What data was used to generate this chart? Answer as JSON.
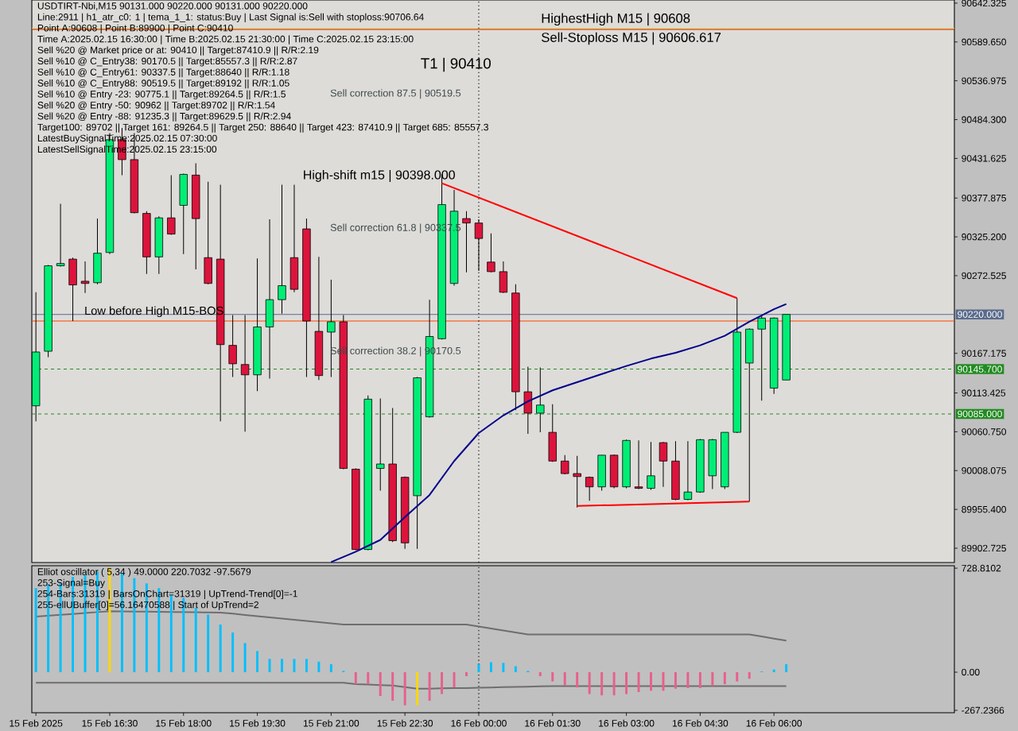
{
  "chart_data": [
    {
      "type": "candlestick",
      "title": "USDTIRT-Nbi,M15  90131.000 90220.000 90131.000 90220.000",
      "annotations": [
        "Line:2911 | h1_atr_c0: 1 | tema_1_1: status:Buy | Last Signal is:Sell with stoploss:90706.64",
        "Point A:90608 | Point B:89900 | Point C:90410",
        "Time A:2025.02.15 16:30:00 | Time B:2025.02.15 21:30:00 | Time C:2025.02.15 23:15:00",
        "Sell %20 @ Market price or at: 90410 || Target:87410.9 || R/R:2.19",
        "Sell %10 @ C_Entry38: 90170.5 || Target:85557.3 || R/R:2.87",
        "Sell %10 @ C_Entry61: 90337.5 || Target:88640 || R/R:1.18",
        "Sell %10 @ C_Entry88: 90519.5 || Target:89192 || R/R:1.05",
        "Sell %10 @ Entry -23: 90775.1 || Target:89264.5 || R/R:1.5",
        "Sell %20 @ Entry -50: 90962 || Target:89702 || R/R:1.54",
        "Sell %20 @ Entry -88: 91235.3 || Target:89629.5 || R/R:2.94",
        "Target100: 89702 || Target 161: 89264.5 || Target 250: 88640 || Target 423: 87410.9 || Target 685: 85557.3",
        "LatestBuySignalTime:2025.02.15 07:30:00",
        "LatestSellSignalTime:2025.02.15 23:15:00",
        "T1 | 90410",
        "Sell correction 87.5 | 90519.5",
        "Sell correction 61.8 | 90337.5",
        "Sell correction 38.2 | 90170.5",
        {
          "text": "High-shift m15 | 90398.000",
          "x": "2025-02-15T23:15",
          "y": 90398
        }
      ],
      "x": [
        "2025-02-15T15:00",
        "2025-02-15T15:15",
        "2025-02-15T15:30",
        "2025-02-15T15:45",
        "2025-02-15T16:00",
        "2025-02-15T16:15",
        "2025-02-15T16:30",
        "2025-02-15T16:45",
        "2025-02-15T17:00",
        "2025-02-15T17:15",
        "2025-02-15T17:30",
        "2025-02-15T17:45",
        "2025-02-15T18:00",
        "2025-02-15T18:15",
        "2025-02-15T18:30",
        "2025-02-15T18:45",
        "2025-02-15T19:00",
        "2025-02-15T19:15",
        "2025-02-15T19:30",
        "2025-02-15T19:45",
        "2025-02-15T20:00",
        "2025-02-15T20:15",
        "2025-02-15T20:30",
        "2025-02-15T20:45",
        "2025-02-15T21:00",
        "2025-02-15T21:15",
        "2025-02-15T21:30",
        "2025-02-15T21:45",
        "2025-02-15T22:00",
        "2025-02-15T22:15",
        "2025-02-15T22:30",
        "2025-02-15T22:45",
        "2025-02-15T23:00",
        "2025-02-15T23:15",
        "2025-02-15T23:30",
        "2025-02-15T23:45",
        "2025-02-16T00:00",
        "2025-02-16T00:15",
        "2025-02-16T00:30",
        "2025-02-16T00:45",
        "2025-02-16T01:00",
        "2025-02-16T01:15",
        "2025-02-16T01:30",
        "2025-02-16T01:45",
        "2025-02-16T02:00",
        "2025-02-16T02:15",
        "2025-02-16T02:30",
        "2025-02-16T02:45",
        "2025-02-16T03:00",
        "2025-02-16T03:15",
        "2025-02-16T03:30",
        "2025-02-16T03:45",
        "2025-02-16T04:00",
        "2025-02-16T04:15",
        "2025-02-16T04:30",
        "2025-02-16T04:45",
        "2025-02-16T05:00",
        "2025-02-16T05:15",
        "2025-02-16T05:30",
        "2025-02-16T05:45",
        "2025-02-16T06:00",
        "2025-02-16T06:15"
      ],
      "ohlc": [
        [
          90096,
          90250,
          90075,
          90169
        ],
        [
          90170,
          90287,
          90162,
          90286
        ],
        [
          90286,
          90370,
          90285,
          90289
        ],
        [
          90295,
          90297,
          90211,
          90260
        ],
        [
          90265,
          90292,
          90249,
          90262
        ],
        [
          90263,
          90350,
          90261,
          90303
        ],
        [
          90304,
          90466,
          90302,
          90457
        ],
        [
          90457,
          90473,
          90409,
          90430
        ],
        [
          90430,
          90466,
          90357,
          90358
        ],
        [
          90357,
          90360,
          90275,
          90298
        ],
        [
          90298,
          90353,
          90275,
          90351
        ],
        [
          90351,
          90409,
          90328,
          90329
        ],
        [
          90368,
          90411,
          90302,
          90410
        ],
        [
          90409,
          90425,
          90281,
          90350
        ],
        [
          90297,
          90400,
          90261,
          90262
        ],
        [
          90295,
          90396,
          90075,
          90179
        ],
        [
          90178,
          90219,
          90135,
          90153
        ],
        [
          90152,
          90219,
          90061,
          90138
        ],
        [
          90138,
          90296,
          90116,
          90203
        ],
        [
          90203,
          90349,
          90133,
          90240
        ],
        [
          90240,
          90396,
          90221,
          90259
        ],
        [
          90297,
          90396,
          90250,
          90254
        ],
        [
          90336,
          90350,
          90135,
          90211
        ],
        [
          90197,
          90298,
          90131,
          90137
        ],
        [
          90196,
          90267,
          90135,
          90210
        ],
        [
          90210,
          90219,
          90010,
          90011
        ],
        [
          90010,
          90011,
          89900,
          89901
        ],
        [
          89901,
          90110,
          89900,
          90105
        ],
        [
          90011,
          90106,
          89981,
          90017
        ],
        [
          90017,
          90093,
          89911,
          89913
        ],
        [
          89999,
          90000,
          89902,
          89910
        ],
        [
          89974,
          90135,
          89902,
          90134
        ],
        [
          90081,
          90240,
          90080,
          90190
        ],
        [
          90187,
          90410,
          90186,
          90369
        ],
        [
          90262,
          90389,
          90259,
          90360
        ],
        [
          90350,
          90360,
          90277,
          90344
        ],
        [
          90344,
          90349,
          90279,
          90323
        ],
        [
          90291,
          90330,
          90277,
          90278
        ],
        [
          90278,
          90292,
          90249,
          90250
        ],
        [
          90249,
          90261,
          90090,
          90115
        ],
        [
          90115,
          90149,
          90058,
          90086
        ],
        [
          90086,
          90148,
          90060,
          90097
        ],
        [
          90060,
          90098,
          90020,
          90021
        ],
        [
          90021,
          90029,
          90003,
          90004
        ],
        [
          90004,
          90028,
          89958,
          90000
        ],
        [
          89999,
          90000,
          89967,
          89986
        ],
        [
          89986,
          90029,
          89981,
          90029
        ],
        [
          90029,
          90030,
          89984,
          89986
        ],
        [
          89986,
          90050,
          89984,
          90049
        ],
        [
          89986,
          90049,
          89983,
          89984
        ],
        [
          89984,
          90047,
          89982,
          90001
        ],
        [
          90046,
          90047,
          89986,
          90021
        ],
        [
          90021,
          90048,
          89968,
          89969
        ],
        [
          89969,
          90048,
          89968,
          89979
        ],
        [
          89979,
          90051,
          89978,
          90050
        ],
        [
          90001,
          90051,
          89983,
          90050
        ],
        [
          89986,
          90060,
          89983,
          90060
        ],
        [
          90060,
          90242,
          90059,
          90196
        ],
        [
          90154,
          90201,
          89966,
          90200
        ],
        [
          90200,
          90219,
          90103,
          90215
        ],
        [
          90120,
          90216,
          90112,
          90215
        ],
        [
          90131,
          90220,
          90131,
          90220
        ]
      ],
      "colors": [
        "#00ee76",
        "#00ee76",
        "#00ee76",
        "#dc143c",
        "#dc143c",
        "#00ee76",
        "#00ee76",
        "#dc143c",
        "#dc143c",
        "#dc143c",
        "#00ee76",
        "#dc143c",
        "#00ee76",
        "#dc143c",
        "#dc143c",
        "#dc143c",
        "#dc143c",
        "#dc143c",
        "#00ee76",
        "#00ee76",
        "#00ee76",
        "#dc143c",
        "#dc143c",
        "#dc143c",
        "#00ee76",
        "#dc143c",
        "#dc143c",
        "#00ee76",
        "#00ee76",
        "#dc143c",
        "#dc143c",
        "#00ee76",
        "#00ee76",
        "#00ee76",
        "#00ee76",
        "#dc143c",
        "#dc143c",
        "#dc143c",
        "#dc143c",
        "#dc143c",
        "#dc143c",
        "#00ee76",
        "#dc143c",
        "#dc143c",
        "#dc143c",
        "#dc143c",
        "#00ee76",
        "#dc143c",
        "#00ee76",
        "#dc143c",
        "#00ee76",
        "#dc143c",
        "#dc143c",
        "#00ee76",
        "#00ee76",
        "#00ee76",
        "#00ee76",
        "#00ee76",
        "#00ee76",
        "#00ee76",
        "#00ee76",
        "#00ee76"
      ],
      "series": [
        {
          "type": "line",
          "color": "#00008b",
          "x": [
            "2025-02-15T21:00",
            "2025-02-15T21:30",
            "2025-02-15T22:00",
            "2025-02-15T22:30",
            "2025-02-15T23:00",
            "2025-02-15T23:30",
            "2025-02-16T00:00",
            "2025-02-16T00:30",
            "2025-02-16T01:00",
            "2025-02-16T01:30",
            "2025-02-16T02:00",
            "2025-02-16T02:30",
            "2025-02-16T03:00",
            "2025-02-16T03:30",
            "2025-02-16T04:00",
            "2025-02-16T04:30",
            "2025-02-16T05:00",
            "2025-02-16T05:30",
            "2025-02-16T06:00",
            "2025-02-16T06:15"
          ],
          "values": [
            89884,
            89898,
            89914,
            89945,
            89975,
            90021,
            90059,
            90083,
            90102,
            90117,
            90128,
            90139,
            90150,
            90160,
            90168,
            90178,
            90191,
            90210,
            90227,
            90234
          ]
        },
        {
          "type": "line",
          "color": "#ff0000",
          "x": [
            "2025-02-15T23:15",
            "2025-02-16T05:15"
          ],
          "values": [
            90398,
            90242
          ]
        },
        {
          "type": "line",
          "color": "#ff0000",
          "x": [
            "2025-02-16T02:00",
            "2025-02-16T05:30"
          ],
          "values": [
            89960,
            89966
          ]
        }
      ],
      "ref_lines": [
        {
          "axis": "y",
          "value": 90220,
          "label": "90220.000",
          "color": "#5a6b8c"
        },
        {
          "axis": "y",
          "value": 90145.7,
          "label": "90145.700",
          "color": "#228b22",
          "line_style": "dashed"
        },
        {
          "axis": "y",
          "value": 90085,
          "label": "90085.000",
          "color": "#228b22",
          "line_style": "dashed"
        },
        {
          "axis": "y",
          "value": 90211,
          "label": "Low before High    M15-BOS",
          "color": "#ff4500"
        },
        {
          "axis": "y",
          "value": 90608,
          "label": "HighestHigh M15 | 90608",
          "color": "#adff2f"
        },
        {
          "axis": "y",
          "value": 90606.617,
          "label": "Sell-Stoploss M15 | 90606.617",
          "color": "#ff0000"
        },
        {
          "axis": "x",
          "value": "2025-02-16T00:00",
          "color": "#000000",
          "line_style": "dotted"
        }
      ],
      "xlim": [
        "2025-02-15T14:55",
        "2025-02-16T09:40"
      ],
      "ylim": [
        89883.3,
        90646.6
      ],
      "yticks": [
        90642.325,
        {
          "value": 90589.65,
          "label": "90589.650"
        },
        90536.975,
        {
          "value": 90484.3,
          "label": "90484.300"
        },
        90431.625,
        90377.875,
        {
          "value": 90325.2,
          "label": "90325.200"
        },
        90272.525,
        90167.175,
        90113.425,
        {
          "value": 90060.75,
          "label": "90060.750"
        },
        90008.075,
        {
          "value": 89955.4,
          "label": "89955.400"
        },
        89902.725
      ],
      "tick_labels": "y"
    },
    {
      "type": "bar",
      "title": "Elliot oscillator ( 5,34 ) 49.0000 220.7032 -97.5679",
      "annotations": [
        "253-Signal=Buy",
        "254-Bars:31319 | BarsOnChart=31319 | UpTrend-Trend[0]=-1",
        "255-ellUBuffer[0]=56.16470588 | Start of UpTrend=2"
      ],
      "x": [
        "2025-02-15T15:00",
        "2025-02-15T15:15",
        "2025-02-15T15:30",
        "2025-02-15T15:45",
        "2025-02-15T16:00",
        "2025-02-15T16:15",
        "2025-02-15T16:30",
        "2025-02-15T16:45",
        "2025-02-15T17:00",
        "2025-02-15T17:15",
        "2025-02-15T17:30",
        "2025-02-15T17:45",
        "2025-02-15T18:00",
        "2025-02-15T18:15",
        "2025-02-15T18:30",
        "2025-02-15T18:45",
        "2025-02-15T19:00",
        "2025-02-15T19:15",
        "2025-02-15T19:30",
        "2025-02-15T19:45",
        "2025-02-15T20:00",
        "2025-02-15T20:15",
        "2025-02-15T20:30",
        "2025-02-15T20:45",
        "2025-02-15T21:00",
        "2025-02-15T21:15",
        "2025-02-15T21:30",
        "2025-02-15T21:45",
        "2025-02-15T22:00",
        "2025-02-15T22:15",
        "2025-02-15T22:30",
        "2025-02-15T22:45",
        "2025-02-15T23:00",
        "2025-02-15T23:15",
        "2025-02-15T23:30",
        "2025-02-15T23:45",
        "2025-02-16T00:00",
        "2025-02-16T00:15",
        "2025-02-16T00:30",
        "2025-02-16T00:45",
        "2025-02-16T01:00",
        "2025-02-16T01:15",
        "2025-02-16T01:30",
        "2025-02-16T01:45",
        "2025-02-16T02:00",
        "2025-02-16T02:15",
        "2025-02-16T02:30",
        "2025-02-16T02:45",
        "2025-02-16T03:00",
        "2025-02-16T03:15",
        "2025-02-16T03:30",
        "2025-02-16T03:45",
        "2025-02-16T04:00",
        "2025-02-16T04:15",
        "2025-02-16T04:30",
        "2025-02-16T04:45",
        "2025-02-16T05:00",
        "2025-02-16T05:15",
        "2025-02-16T05:30",
        "2025-02-16T05:45",
        "2025-02-16T06:00",
        "2025-02-16T06:15"
      ],
      "series": [
        {
          "type": "bar",
          "values": [
            589,
            612,
            622,
            668,
            682,
            705,
            729,
            696,
            659,
            622,
            589,
            543,
            520,
            450,
            404,
            334,
            278,
            204,
            148,
            93,
            93,
            93,
            93,
            74,
            56,
            9,
            -84,
            -84,
            -167,
            -200,
            -232,
            -232,
            -200,
            -153,
            -107,
            -28,
            56,
            70,
            65,
            42,
            9,
            -28,
            -65,
            -93,
            -107,
            -153,
            -162,
            -162,
            -153,
            -139,
            -130,
            -130,
            -116,
            -111,
            -111,
            -97,
            -84,
            -65,
            -46,
            5,
            19,
            56
          ],
          "colors": [
            "#00bfff",
            "#00bfff",
            "#00bfff",
            "#00bfff",
            "#00bfff",
            "#00bfff",
            "#ffd700",
            "#00bfff",
            "#00bfff",
            "#00bfff",
            "#00bfff",
            "#00bfff",
            "#00bfff",
            "#00bfff",
            "#00bfff",
            "#00bfff",
            "#00bfff",
            "#00bfff",
            "#00bfff",
            "#00bfff",
            "#00bfff",
            "#00bfff",
            "#00bfff",
            "#00bfff",
            "#00bfff",
            "#00bfff",
            "#e8608a",
            "#e8608a",
            "#e8608a",
            "#e8608a",
            "#e8608a",
            "#ffd700",
            "#e8608a",
            "#e8608a",
            "#e8608a",
            "#e8608a",
            "#00bfff",
            "#00bfff",
            "#00bfff",
            "#00bfff",
            "#00bfff",
            "#e8608a",
            "#e8608a",
            "#e8608a",
            "#e8608a",
            "#e8608a",
            "#e8608a",
            "#e8608a",
            "#e8608a",
            "#e8608a",
            "#e8608a",
            "#e8608a",
            "#e8608a",
            "#e8608a",
            "#e8608a",
            "#e8608a",
            "#e8608a",
            "#e8608a",
            "#e8608a",
            "#00bfff",
            "#00bfff",
            "#00bfff"
          ]
        },
        {
          "type": "line",
          "color": "#6e6e6e",
          "values": [
            390,
            396,
            402,
            408,
            415,
            421,
            427,
            426,
            425,
            424,
            423,
            422,
            421,
            420,
            419,
            418,
            410,
            401,
            393,
            384,
            376,
            368,
            359,
            351,
            342,
            334,
            334,
            334,
            334,
            334,
            334,
            334,
            334,
            334,
            334,
            334,
            320,
            306,
            292,
            278,
            264,
            264,
            264,
            264,
            264,
            264,
            264,
            264,
            264,
            264,
            264,
            264,
            264,
            264,
            264,
            264,
            264,
            264,
            264,
            250,
            235,
            221
          ]
        },
        {
          "type": "line",
          "color": "#6e6e6e",
          "values": [
            -74,
            -74,
            -74,
            -74,
            -74,
            -74,
            -74,
            -74,
            -74,
            -74,
            -74,
            -74,
            -74,
            -74,
            -74,
            -74,
            -74,
            -74,
            -74,
            -74,
            -74,
            -74,
            -74,
            -74,
            -74,
            -74,
            -84,
            -87,
            -90,
            -93,
            -105,
            -116,
            -115,
            -113,
            -112,
            -111,
            -109,
            -107,
            -105,
            -103,
            -101,
            -99,
            -98,
            -98,
            -98,
            -98,
            -98,
            -98,
            -98,
            -98,
            -98,
            -98,
            -98,
            -98,
            -98,
            -98,
            -98,
            -98,
            -98,
            -98,
            -98,
            -98
          ]
        }
      ],
      "ref_lines": [
        {
          "axis": "x",
          "value": "2025-02-16T00:00",
          "color": "#000000",
          "line_style": "dotted"
        }
      ],
      "xlim": [
        "2025-02-15T14:55",
        "2025-02-16T09:40"
      ],
      "ylim": [
        -284,
        746
      ],
      "xticks": [
        {
          "value": "2025-02-15T15:00",
          "label": "15 Feb 2025"
        },
        {
          "value": "2025-02-15T16:30",
          "label": "15 Feb 16:30"
        },
        {
          "value": "2025-02-15T18:00",
          "label": "15 Feb 18:00"
        },
        {
          "value": "2025-02-15T19:30",
          "label": "15 Feb 19:30"
        },
        {
          "value": "2025-02-15T21:00",
          "label": "15 Feb 21:00"
        },
        {
          "value": "2025-02-15T22:30",
          "label": "15 Feb 22:30"
        },
        {
          "value": "2025-02-16T00:00",
          "label": "16 Feb 00:00"
        },
        {
          "value": "2025-02-16T01:30",
          "label": "16 Feb 01:30"
        },
        {
          "value": "2025-02-16T03:00",
          "label": "16 Feb 03:00"
        },
        {
          "value": "2025-02-16T04:30",
          "label": "16 Feb 04:30"
        },
        {
          "value": "2025-02-16T06:00",
          "label": "16 Feb 06:00"
        }
      ],
      "yticks": [
        {
          "value": 728.8102,
          "label": "728.8102"
        },
        {
          "value": 0,
          "label": "0.00"
        },
        {
          "value": -267.2366,
          "label": "-267.2366"
        }
      ]
    }
  ]
}
